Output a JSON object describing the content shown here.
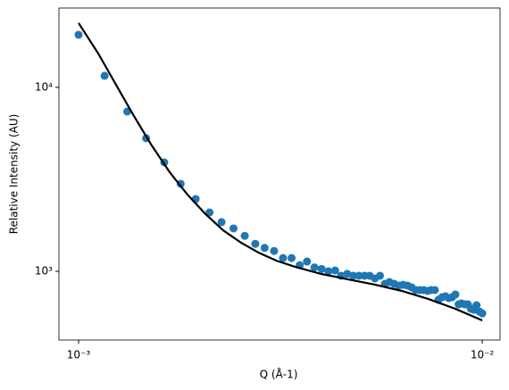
{
  "chart_data": {
    "type": "scatter",
    "xlabel": "Q (Å-1)",
    "ylabel": "Relative Intensity (AU)",
    "xlog": true,
    "ylog": true,
    "xlim": [
      0.000894,
      0.01107
    ],
    "ylim": [
      423,
      27000
    ],
    "xticks": [
      {
        "value": 0.001,
        "label": "10⁻³"
      },
      {
        "value": 0.01,
        "label": "10⁻²"
      }
    ],
    "yticks": [
      {
        "value": 1000,
        "label": "10³"
      },
      {
        "value": 10000,
        "label": "10⁴"
      }
    ],
    "series": [
      {
        "type": "scatter",
        "color": "#1f77b4",
        "x": [
          0.001,
          0.00116,
          0.00132,
          0.00147,
          0.00163,
          0.00179,
          0.00195,
          0.00211,
          0.00226,
          0.00242,
          0.00258,
          0.00274,
          0.00289,
          0.00305,
          0.00321,
          0.00337,
          0.00353,
          0.00368,
          0.00384,
          0.004,
          0.00416,
          0.00432,
          0.00447,
          0.00463,
          0.00479,
          0.00495,
          0.00511,
          0.00526,
          0.00542,
          0.00558,
          0.00574,
          0.00589,
          0.00605,
          0.00621,
          0.00637,
          0.00653,
          0.00668,
          0.00684,
          0.007,
          0.00716,
          0.00732,
          0.00747,
          0.00763,
          0.00779,
          0.00795,
          0.00811,
          0.00826,
          0.00842,
          0.00858,
          0.00874,
          0.00889,
          0.00905,
          0.00921,
          0.00937,
          0.00953,
          0.00968,
          0.00984,
          0.01
        ],
        "values": [
          19320,
          11560,
          7390,
          5290,
          3910,
          2990,
          2470,
          2090,
          1850,
          1710,
          1560,
          1410,
          1340,
          1290,
          1180,
          1180,
          1080,
          1130,
          1050,
          1030,
          1000,
          1010,
          946,
          968,
          946,
          946,
          946,
          946,
          915,
          946,
          855,
          874,
          855,
          836,
          845,
          836,
          818,
          791,
          791,
          791,
          782,
          791,
          791,
          700,
          723,
          731,
          715,
          723,
          748,
          661,
          669,
          661,
          661,
          625,
          618,
          654,
          604,
          590
        ]
      },
      {
        "type": "line",
        "color": "#000000",
        "x": [
          0.001,
          0.001119,
          0.001238,
          0.001371,
          0.001518,
          0.001681,
          0.001862,
          0.002061,
          0.002282,
          0.002527,
          0.002798,
          0.003098,
          0.00343,
          0.003996,
          0.004655,
          0.00542,
          0.00632,
          0.00736,
          0.00858,
          0.01
        ],
        "values": [
          22370,
          15270,
          10340,
          6990,
          4830,
          3460,
          2610,
          2050,
          1670,
          1430,
          1260,
          1140,
          1060,
          967,
          904,
          846,
          782,
          707,
          625,
          541
        ]
      }
    ]
  }
}
